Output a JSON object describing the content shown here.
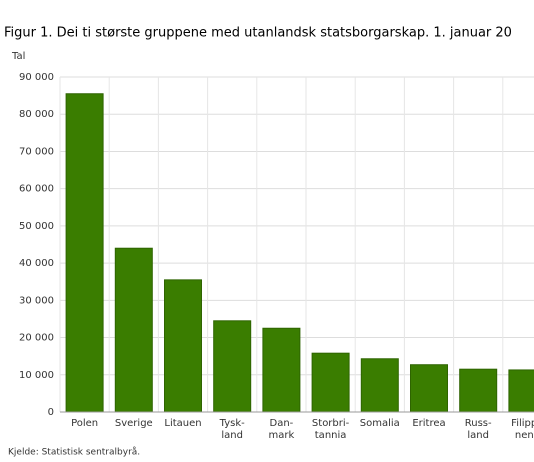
{
  "chart_data": {
    "type": "bar",
    "title": "Figur 1. Dei ti største gruppene med utanlandsk statsborgarskap. 1. januar 20",
    "y_label": "Tal",
    "source": "Kjelde: Statistisk sentralbyrå.",
    "categories": [
      "Polen",
      "Sverige",
      "Litauen",
      "Tysk-\nland",
      "Dan-\nmark",
      "Storbri-\ntannia",
      "Somalia",
      "Eritrea",
      "Russ-\nland",
      "Filippi-\nnene"
    ],
    "values": [
      85500,
      44000,
      35500,
      24500,
      22500,
      15800,
      14300,
      12700,
      11500,
      11300
    ],
    "color": "#3a7d00",
    "ylim": [
      0,
      90000
    ],
    "yticks": [
      0,
      {
        "value": 10000,
        "label": "10 000"
      },
      {
        "value": 20000,
        "label": "20 000"
      },
      {
        "value": 30000,
        "label": "30 000"
      },
      {
        "value": 40000,
        "label": "40 000"
      },
      {
        "value": 50000,
        "label": "50 000"
      },
      {
        "value": 60000,
        "label": "60 000"
      },
      {
        "value": 70000,
        "label": "70 000"
      },
      {
        "value": 80000,
        "label": "80 000"
      },
      {
        "value": 90000,
        "label": "90 000"
      }
    ],
    "grid": true
  }
}
